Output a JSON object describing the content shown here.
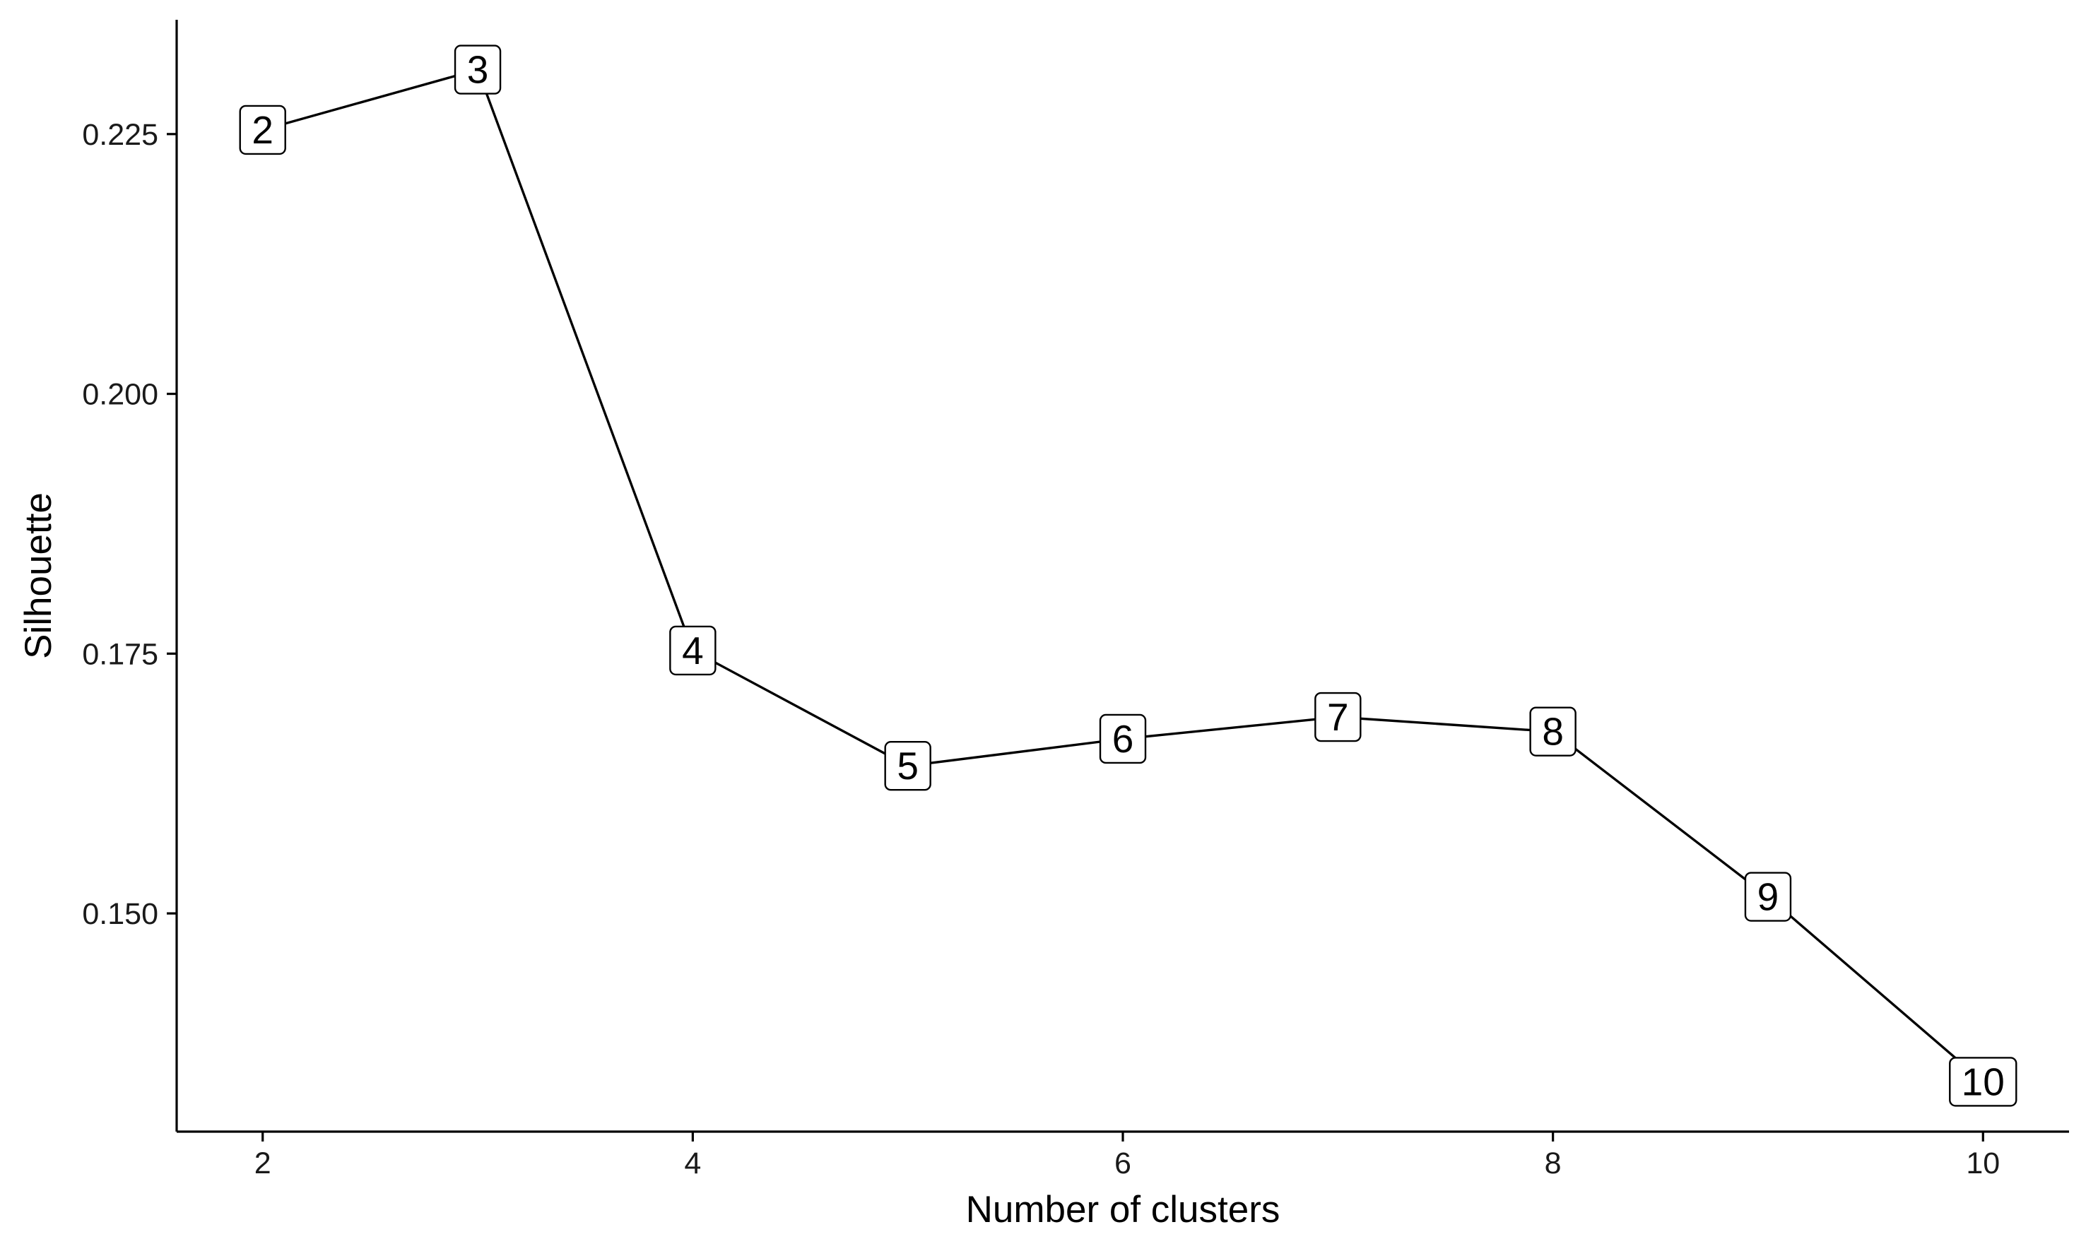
{
  "chart_data": {
    "type": "line",
    "xlabel": "Number of clusters",
    "ylabel": "Silhouette",
    "x": [
      2,
      3,
      4,
      5,
      6,
      7,
      8,
      9,
      10
    ],
    "y": [
      0.2254,
      0.2312,
      0.1753,
      0.1642,
      0.1668,
      0.1689,
      0.1675,
      0.1516,
      0.1338
    ],
    "point_labels": [
      "2",
      "3",
      "4",
      "5",
      "6",
      "7",
      "8",
      "9",
      "10"
    ],
    "xticks": [
      2,
      4,
      6,
      8,
      10
    ],
    "xtick_labels": [
      "2",
      "4",
      "6",
      "8",
      "10"
    ],
    "yticks": [
      0.15,
      0.175,
      0.2,
      0.225
    ],
    "ytick_labels": [
      "0.150",
      "0.175",
      "0.200",
      "0.225"
    ],
    "xlim": [
      1.6,
      10.4
    ],
    "ylim": [
      0.129,
      0.236
    ],
    "grid": false,
    "legend": "none",
    "colors": {
      "line": "#000000",
      "axis": "#000000",
      "label_box_fill": "#ffffff",
      "label_box_border": "#000000",
      "background": "#ffffff"
    }
  }
}
